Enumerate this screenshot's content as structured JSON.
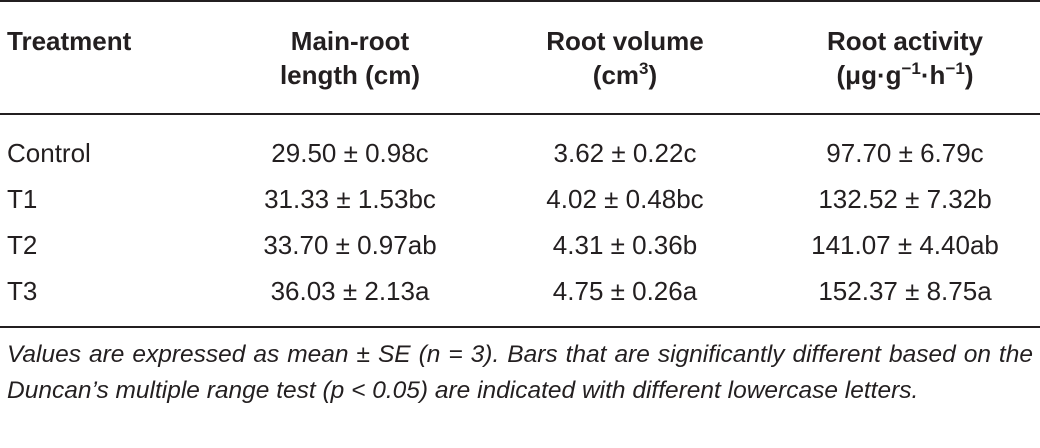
{
  "table": {
    "headers": {
      "treatment": "Treatment",
      "col1_line1": "Main-root",
      "col1_line2": "length (cm)",
      "col2_line1": "Root volume",
      "col2_line2_base": "(cm",
      "col2_line2_sup": "3",
      "col2_line2_end": ")",
      "col3_line1": "Root activity",
      "col3_line2_part1": "(μg·g",
      "col3_line2_sup1": "−1",
      "col3_line2_part2": "·h",
      "col3_line2_sup2": "−1",
      "col3_line2_end": ")"
    },
    "rows": [
      {
        "treatment": "Control",
        "main_root_length": "29.50 ± 0.98c",
        "root_volume": "3.62 ± 0.22c",
        "root_activity": "97.70 ± 6.79c"
      },
      {
        "treatment": "T1",
        "main_root_length": "31.33 ± 1.53bc",
        "root_volume": "4.02 ± 0.48bc",
        "root_activity": "132.52 ± 7.32b"
      },
      {
        "treatment": "T2",
        "main_root_length": "33.70 ± 0.97ab",
        "root_volume": "4.31 ± 0.36b",
        "root_activity": "141.07 ± 4.40ab"
      },
      {
        "treatment": "T3",
        "main_root_length": "36.03 ± 2.13a",
        "root_volume": "4.75 ± 0.26a",
        "root_activity": "152.37 ± 8.75a"
      }
    ]
  },
  "footnote": "Values are expressed as mean ± SE (n = 3). Bars that are significantly different based on the Duncan’s multiple range test (p < 0.05) are indicated with different lowercase letters."
}
